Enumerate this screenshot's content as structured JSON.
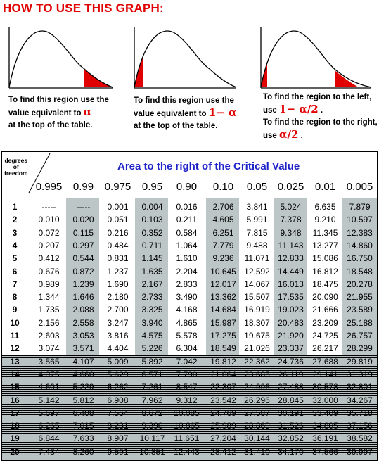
{
  "heading": "HOW TO USE THIS GRAPH:",
  "colors": {
    "heading": "#e00000",
    "region_fill": "#e00000",
    "area_title": "#1f24c8",
    "shaded_column": "#bdc6c6"
  },
  "notes": [
    {
      "lines": [
        "To find this region use the",
        "value equivalent to ",
        "at the top of the table."
      ],
      "symbol": "α"
    },
    {
      "lines": [
        "To find this region use the",
        "value equivalent to ",
        "at the top of the table."
      ],
      "symbol": "1− α"
    },
    {
      "lines": [
        "To find the region to the left,",
        "use ",
        "To find the region to the right,",
        "use "
      ],
      "symbols": [
        "1− α/2",
        "α/2"
      ]
    }
  ],
  "table": {
    "corner": [
      "degrees",
      "of",
      "freedom"
    ],
    "title": "Area to the right of the Critical Value",
    "alphas": [
      "0.995",
      "0.99",
      "0.975",
      "0.95",
      "0.90",
      "0.10",
      "0.05",
      "0.025",
      "0.01",
      "0.005"
    ],
    "rows": [
      {
        "df": "1",
        "v": [
          "-----",
          "-----",
          "0.001",
          "0.004",
          "0.016",
          "2.706",
          "3.841",
          "5.024",
          "6.635",
          "7.879"
        ]
      },
      {
        "df": "2",
        "v": [
          "0.010",
          "0.020",
          "0.051",
          "0.103",
          "0.211",
          "4.605",
          "5.991",
          "7.378",
          "9.210",
          "10.597"
        ]
      },
      {
        "df": "3",
        "v": [
          "0.072",
          "0.115",
          "0.216",
          "0.352",
          "0.584",
          "6.251",
          "7.815",
          "9.348",
          "11.345",
          "12.383"
        ]
      },
      {
        "df": "4",
        "v": [
          "0.207",
          "0.297",
          "0.484",
          "0.711",
          "1.064",
          "7.779",
          "9.488",
          "11.143",
          "13.277",
          "14.860"
        ]
      },
      {
        "df": "5",
        "v": [
          "0.412",
          "0.544",
          "0.831",
          "1.145",
          "1.610",
          "9.236",
          "11.071",
          "12.833",
          "15.086",
          "16.750"
        ]
      },
      {
        "df": "6",
        "v": [
          "0.676",
          "0.872",
          "1.237",
          "1.635",
          "2.204",
          "10.645",
          "12.592",
          "14.449",
          "16.812",
          "18.548"
        ]
      },
      {
        "df": "7",
        "v": [
          "0.989",
          "1.239",
          "1.690",
          "2.167",
          "2.833",
          "12.017",
          "14.067",
          "16.013",
          "18.475",
          "20.278"
        ]
      },
      {
        "df": "8",
        "v": [
          "1.344",
          "1.646",
          "2.180",
          "2.733",
          "3.490",
          "13.362",
          "15.507",
          "17.535",
          "20.090",
          "21.955"
        ]
      },
      {
        "df": "9",
        "v": [
          "1.735",
          "2.088",
          "2.700",
          "3.325",
          "4.168",
          "14.684",
          "16.919",
          "19.023",
          "21.666",
          "23.589"
        ]
      },
      {
        "df": "10",
        "v": [
          "2.156",
          "2.558",
          "3.247",
          "3.940",
          "4.865",
          "15.987",
          "18.307",
          "20.483",
          "23.209",
          "25.188"
        ]
      },
      {
        "df": "11",
        "v": [
          "2.603",
          "3.053",
          "3.816",
          "4.575",
          "5.578",
          "17.275",
          "19.675",
          "21.920",
          "24.725",
          "26.757"
        ]
      },
      {
        "df": "12",
        "v": [
          "3.074",
          "3.571",
          "4.404",
          "5.226",
          "6.304",
          "18.549",
          "21.026",
          "23.337",
          "26.217",
          "28.299"
        ]
      },
      {
        "df": "13",
        "v": [
          "3.565",
          "4.107",
          "5.009",
          "5.892",
          "7.042",
          "19.812",
          "22.362",
          "24.736",
          "27.688",
          "29.819"
        ]
      },
      {
        "df": "14",
        "v": [
          "4.075",
          "4.660",
          "5.629",
          "6.571",
          "7.790",
          "21.064",
          "23.685",
          "26.119",
          "29.141",
          "31.319"
        ]
      },
      {
        "df": "15",
        "v": [
          "4.601",
          "5.229",
          "6.262",
          "7.261",
          "8.547",
          "22.307",
          "24.996",
          "27.488",
          "30.578",
          "32.801"
        ]
      },
      {
        "df": "16",
        "v": [
          "5.142",
          "5.812",
          "6.908",
          "7.962",
          "9.312",
          "23.542",
          "26.296",
          "28.845",
          "32.000",
          "34.267"
        ]
      },
      {
        "df": "17",
        "v": [
          "5.697",
          "6.408",
          "7.564",
          "8.672",
          "10.085",
          "24.769",
          "27.587",
          "30.191",
          "33.409",
          "35.718"
        ]
      },
      {
        "df": "18",
        "v": [
          "6.265",
          "7.015",
          "8.231",
          "9.390",
          "10.865",
          "25.989",
          "28.869",
          "31.526",
          "34.805",
          "37.156"
        ]
      },
      {
        "df": "19",
        "v": [
          "6.844",
          "7.633",
          "8.907",
          "10.117",
          "11.651",
          "27.204",
          "30.144",
          "32.852",
          "36.191",
          "38.582"
        ]
      },
      {
        "df": "20",
        "v": [
          "7.434",
          "8.260",
          "9.591",
          "10.851",
          "12.443",
          "28.412",
          "31.410",
          "34.170",
          "37.566",
          "39.997"
        ]
      }
    ]
  }
}
